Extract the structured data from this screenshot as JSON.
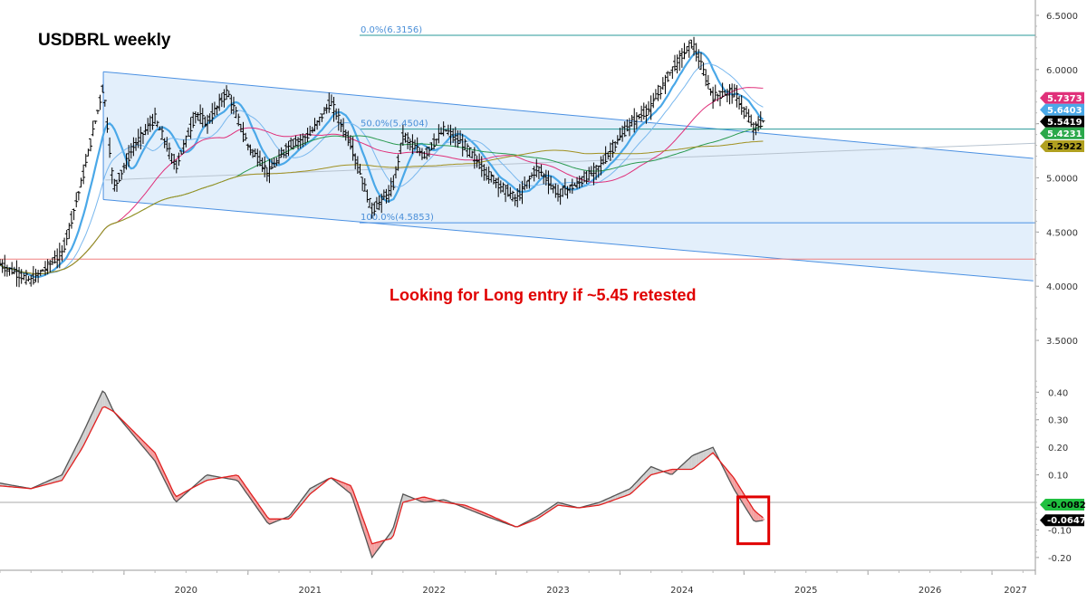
{
  "chart_data": [
    {
      "type": "candlestick",
      "title": "USDBRL weekly",
      "annotation": "Looking for Long entry if ~5.45 retested",
      "ylim": [
        3.3,
        6.6
      ],
      "y_ticks": [
        "6.5000",
        "6.0000",
        "5.5000",
        "5.0000",
        "4.5000",
        "4.0000",
        "3.5000"
      ],
      "x_labels": [
        "2020",
        "2021",
        "2022",
        "2023",
        "2024",
        "2025",
        "2026",
        "2027"
      ],
      "fib_levels": [
        {
          "label": "0.0%(6.3156)",
          "value": 6.3156
        },
        {
          "label": "50.0%(5.4504)",
          "value": 5.4504
        },
        {
          "label": "100.0%(4.5853)",
          "value": 4.5853
        }
      ],
      "horizontal_line": 4.25,
      "channel": {
        "upper": [
          [
            "2019-11",
            5.98
          ],
          [
            "2027-05",
            5.18
          ]
        ],
        "lower": [
          [
            "2019-11",
            4.8
          ],
          [
            "2027-05",
            4.05
          ]
        ]
      },
      "price_path": [
        [
          "2019-01",
          4.2
        ],
        [
          "2019-04",
          4.05
        ],
        [
          "2019-07",
          4.3
        ],
        [
          "2019-09",
          5.0
        ],
        [
          "2019-11",
          5.85
        ],
        [
          "2019-12",
          4.9
        ],
        [
          "2020-02",
          5.3
        ],
        [
          "2020-04",
          5.55
        ],
        [
          "2020-06",
          5.1
        ],
        [
          "2020-08",
          5.6
        ],
        [
          "2020-09",
          5.5
        ],
        [
          "2020-11",
          5.8
        ],
        [
          "2021-01",
          5.3
        ],
        [
          "2021-03",
          5.05
        ],
        [
          "2021-05",
          5.3
        ],
        [
          "2021-07",
          5.4
        ],
        [
          "2021-09",
          5.7
        ],
        [
          "2021-11",
          5.3
        ],
        [
          "2022-01",
          4.7
        ],
        [
          "2022-03",
          4.9
        ],
        [
          "2022-04",
          5.4
        ],
        [
          "2022-06",
          5.2
        ],
        [
          "2022-08",
          5.45
        ],
        [
          "2022-10",
          5.3
        ],
        [
          "2022-12",
          5.05
        ],
        [
          "2023-03",
          4.8
        ],
        [
          "2023-05",
          5.1
        ],
        [
          "2023-07",
          4.85
        ],
        [
          "2023-09",
          4.95
        ],
        [
          "2023-11",
          5.1
        ],
        [
          "2024-02",
          5.5
        ],
        [
          "2024-04",
          5.65
        ],
        [
          "2024-06",
          6.0
        ],
        [
          "2024-08",
          6.25
        ],
        [
          "2024-10",
          5.75
        ],
        [
          "2024-12",
          5.8
        ],
        [
          "2025-02",
          5.45
        ],
        [
          "2025-03",
          5.54
        ]
      ],
      "series": [
        {
          "name": "",
          "color": "#e0307a"
        },
        {
          "name": "",
          "color": "#4aa8e8"
        },
        {
          "name": "",
          "color": "#2a9a50"
        },
        {
          "name": "",
          "color": "#a09020"
        }
      ],
      "badges": [
        {
          "value": "5.7373",
          "bg": "#e0307a",
          "fg": "#ffffff"
        },
        {
          "value": "5.6403",
          "bg": "#4aa8e8",
          "fg": "#ffffff"
        },
        {
          "value": "5.5419",
          "bg": "#000000",
          "fg": "#ffffff"
        },
        {
          "value": "5.4231",
          "bg": "#2aa84a",
          "fg": "#ffffff"
        },
        {
          "value": "5.2922",
          "bg": "#b0a020",
          "fg": "#000000"
        }
      ]
    },
    {
      "type": "line",
      "ylim": [
        -0.23,
        0.47
      ],
      "y_ticks": [
        "0.40",
        "0.30",
        "0.20",
        "0.10",
        "-0.10",
        "-0.20"
      ],
      "series": [
        {
          "name": "",
          "color": "#555555",
          "points": [
            [
              "2019-01",
              0.07
            ],
            [
              "2019-04",
              0.05
            ],
            [
              "2019-07",
              0.1
            ],
            [
              "2019-09",
              0.25
            ],
            [
              "2019-11",
              0.41
            ],
            [
              "2019-12",
              0.33
            ],
            [
              "2020-04",
              0.15
            ],
            [
              "2020-06",
              0.0
            ],
            [
              "2020-09",
              0.1
            ],
            [
              "2020-12",
              0.08
            ],
            [
              "2021-03",
              -0.08
            ],
            [
              "2021-05",
              -0.05
            ],
            [
              "2021-07",
              0.05
            ],
            [
              "2021-09",
              0.09
            ],
            [
              "2021-11",
              0.03
            ],
            [
              "2022-01",
              -0.2
            ],
            [
              "2022-03",
              -0.1
            ],
            [
              "2022-04",
              0.03
            ],
            [
              "2022-06",
              0.0
            ],
            [
              "2022-08",
              0.01
            ],
            [
              "2022-10",
              -0.02
            ],
            [
              "2022-12",
              -0.05
            ],
            [
              "2023-03",
              -0.09
            ],
            [
              "2023-05",
              -0.05
            ],
            [
              "2023-07",
              0.0
            ],
            [
              "2023-09",
              -0.02
            ],
            [
              "2023-11",
              0.0
            ],
            [
              "2024-02",
              0.05
            ],
            [
              "2024-04",
              0.13
            ],
            [
              "2024-06",
              0.1
            ],
            [
              "2024-08",
              0.17
            ],
            [
              "2024-10",
              0.2
            ],
            [
              "2024-12",
              0.05
            ],
            [
              "2025-02",
              -0.07
            ],
            [
              "2025-03",
              -0.065
            ]
          ]
        },
        {
          "name": "",
          "color": "#e02020",
          "points": [
            [
              "2019-01",
              0.06
            ],
            [
              "2019-04",
              0.05
            ],
            [
              "2019-07",
              0.08
            ],
            [
              "2019-09",
              0.2
            ],
            [
              "2019-11",
              0.35
            ],
            [
              "2019-12",
              0.33
            ],
            [
              "2020-04",
              0.18
            ],
            [
              "2020-06",
              0.02
            ],
            [
              "2020-09",
              0.08
            ],
            [
              "2020-12",
              0.1
            ],
            [
              "2021-03",
              -0.06
            ],
            [
              "2021-05",
              -0.06
            ],
            [
              "2021-07",
              0.03
            ],
            [
              "2021-09",
              0.09
            ],
            [
              "2021-11",
              0.06
            ],
            [
              "2022-01",
              -0.15
            ],
            [
              "2022-03",
              -0.13
            ],
            [
              "2022-04",
              0.0
            ],
            [
              "2022-06",
              0.02
            ],
            [
              "2022-08",
              0.0
            ],
            [
              "2022-10",
              -0.01
            ],
            [
              "2022-12",
              -0.04
            ],
            [
              "2023-03",
              -0.09
            ],
            [
              "2023-05",
              -0.06
            ],
            [
              "2023-07",
              -0.01
            ],
            [
              "2023-09",
              -0.02
            ],
            [
              "2023-11",
              -0.01
            ],
            [
              "2024-02",
              0.03
            ],
            [
              "2024-04",
              0.1
            ],
            [
              "2024-06",
              0.12
            ],
            [
              "2024-08",
              0.12
            ],
            [
              "2024-10",
              0.18
            ],
            [
              "2024-12",
              0.09
            ],
            [
              "2025-02",
              -0.03
            ],
            [
              "2025-03",
              -0.06
            ]
          ]
        }
      ],
      "badges": [
        {
          "value": "-0.0082",
          "bg": "#20c040",
          "fg": "#000000"
        },
        {
          "value": "-0.0647",
          "bg": "#000000",
          "fg": "#ffffff"
        }
      ]
    }
  ]
}
